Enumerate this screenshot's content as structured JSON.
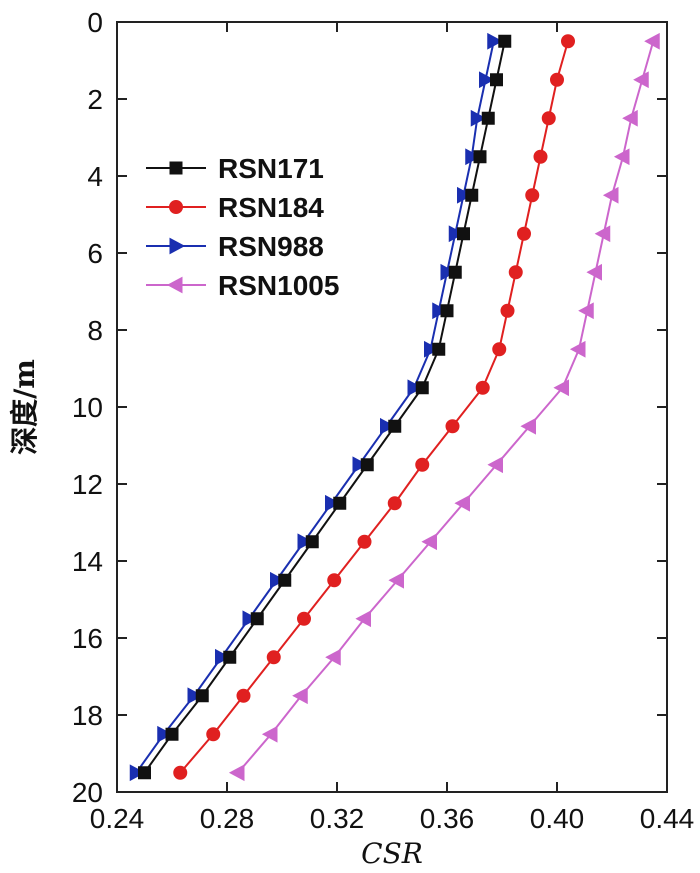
{
  "chart_data": {
    "type": "line",
    "xlabel": "CSR",
    "ylabel": "深度/m",
    "xlim": [
      0.24,
      0.44
    ],
    "ylim": [
      0,
      20
    ],
    "y_inverted": true,
    "x_ticks": [
      "0.24",
      "0.28",
      "0.32",
      "0.36",
      "0.40",
      "0.44"
    ],
    "y_ticks": [
      "0",
      "2",
      "4",
      "6",
      "8",
      "10",
      "12",
      "14",
      "16",
      "18",
      "20"
    ],
    "legend_position": "upper-left",
    "grid": false,
    "depths": [
      0.5,
      1.5,
      2.5,
      3.5,
      4.5,
      5.5,
      6.5,
      7.5,
      8.5,
      9.5,
      10.5,
      11.5,
      12.5,
      13.5,
      14.5,
      15.5,
      16.5,
      17.5,
      18.5,
      19.5
    ],
    "series": [
      {
        "name": "RSN171",
        "color": "#111111",
        "marker": "square",
        "values": [
          0.381,
          0.378,
          0.375,
          0.372,
          0.369,
          0.366,
          0.363,
          0.36,
          0.357,
          0.351,
          0.341,
          0.331,
          0.321,
          0.311,
          0.301,
          0.291,
          0.281,
          0.271,
          0.26,
          0.25
        ]
      },
      {
        "name": "RSN184",
        "color": "#e02020",
        "marker": "circle",
        "values": [
          0.404,
          0.4,
          0.397,
          0.394,
          0.391,
          0.388,
          0.385,
          0.382,
          0.379,
          0.373,
          0.362,
          0.351,
          0.341,
          0.33,
          0.319,
          0.308,
          0.297,
          0.286,
          0.275,
          0.263
        ]
      },
      {
        "name": "RSN988",
        "color": "#1a2fb0",
        "marker": "triangle-right",
        "values": [
          0.377,
          0.374,
          0.371,
          0.369,
          0.366,
          0.363,
          0.36,
          0.357,
          0.354,
          0.348,
          0.338,
          0.328,
          0.318,
          0.308,
          0.298,
          0.288,
          0.278,
          0.268,
          0.257,
          0.247
        ]
      },
      {
        "name": "RSN1005",
        "color": "#cc66cc",
        "marker": "triangle-left",
        "values": [
          0.435,
          0.431,
          0.427,
          0.424,
          0.42,
          0.417,
          0.414,
          0.411,
          0.408,
          0.402,
          0.39,
          0.378,
          0.366,
          0.354,
          0.342,
          0.33,
          0.319,
          0.307,
          0.296,
          0.284
        ]
      }
    ]
  }
}
